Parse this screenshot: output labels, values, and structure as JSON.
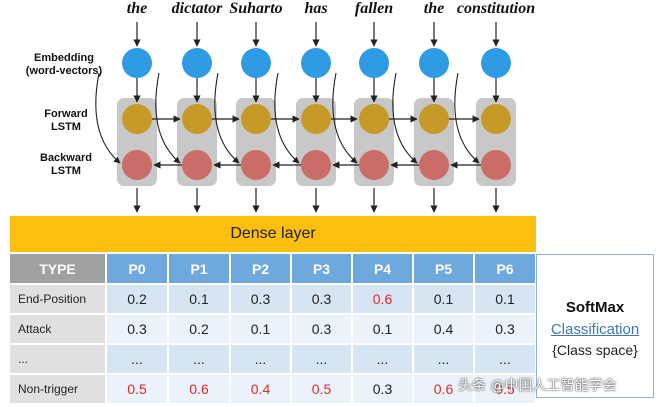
{
  "words": [
    "the",
    "dictator",
    "Suharto",
    "has",
    "fallen",
    "the",
    "constitution"
  ],
  "labels": {
    "embedding_line1": "Embedding",
    "embedding_line2": "(word-vectors)",
    "forward_line1": "Forward",
    "forward_line2": "LSTM",
    "backward_line1": "Backward",
    "backward_line2": "LSTM"
  },
  "dense_layer": "Dense layer",
  "table": {
    "header": [
      "TYPE",
      "P0",
      "P1",
      "P2",
      "P3",
      "P4",
      "P5",
      "P6"
    ],
    "rows": [
      {
        "type": "End-Position",
        "values": [
          "0.2",
          "0.1",
          "0.3",
          "0.3",
          "0.6",
          "0.1",
          "0.1"
        ],
        "highlight": [
          4
        ]
      },
      {
        "type": "Attack",
        "values": [
          "0.3",
          "0.2",
          "0.1",
          "0.3",
          "0.1",
          "0.4",
          "0.3"
        ],
        "highlight": []
      },
      {
        "type": "...",
        "values": [
          "...",
          "...",
          "...",
          "...",
          "...",
          "...",
          "..."
        ],
        "highlight": []
      },
      {
        "type": "Non-trigger",
        "values": [
          "0.5",
          "0.6",
          "0.4",
          "0.5",
          "0.3",
          "0.6",
          "0.5"
        ],
        "highlight": [
          0,
          1,
          2,
          3,
          5,
          6
        ]
      }
    ]
  },
  "softmax": {
    "title": "SoftMax",
    "link": "Classification",
    "space": "{Class space}"
  },
  "watermark": "头条 @中国人工智能学会",
  "colors": {
    "embedding": "#2f9be4",
    "forward": "#c69a29",
    "backward": "#c96d66",
    "lstm_box": "#c8c8c8",
    "dense": "#fdbf0f",
    "header": "#6fa8dc",
    "highlight": "#e02a2a"
  }
}
